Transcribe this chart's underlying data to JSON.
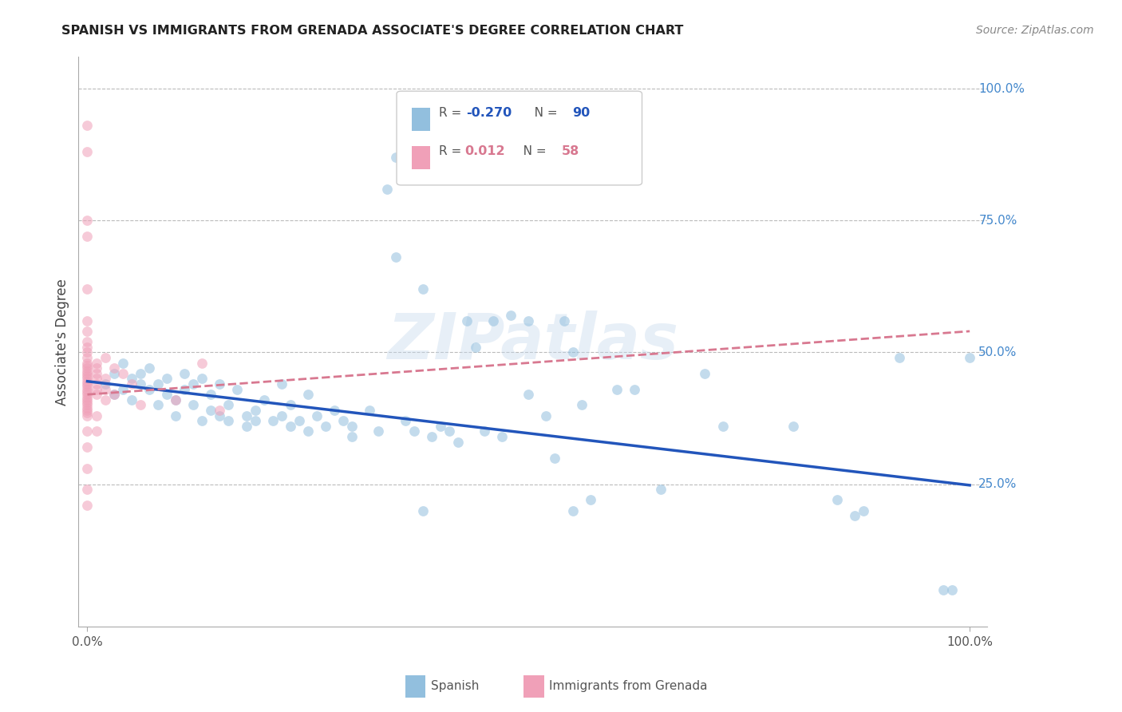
{
  "title": "SPANISH VS IMMIGRANTS FROM GRENADA ASSOCIATE'S DEGREE CORRELATION CHART",
  "source": "Source: ZipAtlas.com",
  "ylabel": "Associate's Degree",
  "watermark": "ZIPatlas",
  "xlim": [
    0.0,
    1.0
  ],
  "ylim": [
    0.0,
    1.0
  ],
  "x_ticks": [
    0.0,
    1.0
  ],
  "x_tick_labels": [
    "0.0%",
    "100.0%"
  ],
  "y_tick_positions": [
    0.25,
    0.5,
    0.75,
    1.0
  ],
  "y_tick_labels": [
    "25.0%",
    "50.0%",
    "75.0%",
    "100.0%"
  ],
  "blue_scatter": [
    [
      0.02,
      0.44
    ],
    [
      0.03,
      0.46
    ],
    [
      0.03,
      0.42
    ],
    [
      0.04,
      0.48
    ],
    [
      0.04,
      0.43
    ],
    [
      0.05,
      0.45
    ],
    [
      0.05,
      0.41
    ],
    [
      0.06,
      0.44
    ],
    [
      0.06,
      0.46
    ],
    [
      0.07,
      0.47
    ],
    [
      0.07,
      0.43
    ],
    [
      0.08,
      0.44
    ],
    [
      0.08,
      0.4
    ],
    [
      0.09,
      0.42
    ],
    [
      0.09,
      0.45
    ],
    [
      0.1,
      0.41
    ],
    [
      0.1,
      0.38
    ],
    [
      0.11,
      0.46
    ],
    [
      0.11,
      0.43
    ],
    [
      0.12,
      0.44
    ],
    [
      0.12,
      0.4
    ],
    [
      0.13,
      0.45
    ],
    [
      0.13,
      0.37
    ],
    [
      0.14,
      0.39
    ],
    [
      0.14,
      0.42
    ],
    [
      0.15,
      0.44
    ],
    [
      0.15,
      0.38
    ],
    [
      0.16,
      0.4
    ],
    [
      0.16,
      0.37
    ],
    [
      0.17,
      0.43
    ],
    [
      0.18,
      0.38
    ],
    [
      0.18,
      0.36
    ],
    [
      0.19,
      0.39
    ],
    [
      0.19,
      0.37
    ],
    [
      0.2,
      0.41
    ],
    [
      0.21,
      0.37
    ],
    [
      0.22,
      0.44
    ],
    [
      0.22,
      0.38
    ],
    [
      0.23,
      0.36
    ],
    [
      0.23,
      0.4
    ],
    [
      0.24,
      0.37
    ],
    [
      0.25,
      0.42
    ],
    [
      0.25,
      0.35
    ],
    [
      0.26,
      0.38
    ],
    [
      0.27,
      0.36
    ],
    [
      0.28,
      0.39
    ],
    [
      0.29,
      0.37
    ],
    [
      0.3,
      0.34
    ],
    [
      0.3,
      0.36
    ],
    [
      0.32,
      0.39
    ],
    [
      0.33,
      0.35
    ],
    [
      0.34,
      0.81
    ],
    [
      0.35,
      0.87
    ],
    [
      0.35,
      0.68
    ],
    [
      0.36,
      0.37
    ],
    [
      0.37,
      0.35
    ],
    [
      0.38,
      0.62
    ],
    [
      0.38,
      0.2
    ],
    [
      0.39,
      0.34
    ],
    [
      0.4,
      0.36
    ],
    [
      0.41,
      0.35
    ],
    [
      0.42,
      0.33
    ],
    [
      0.43,
      0.56
    ],
    [
      0.44,
      0.51
    ],
    [
      0.45,
      0.35
    ],
    [
      0.46,
      0.56
    ],
    [
      0.47,
      0.34
    ],
    [
      0.48,
      0.57
    ],
    [
      0.5,
      0.56
    ],
    [
      0.5,
      0.42
    ],
    [
      0.52,
      0.38
    ],
    [
      0.53,
      0.3
    ],
    [
      0.54,
      0.56
    ],
    [
      0.55,
      0.5
    ],
    [
      0.55,
      0.2
    ],
    [
      0.56,
      0.4
    ],
    [
      0.57,
      0.22
    ],
    [
      0.6,
      0.43
    ],
    [
      0.62,
      0.43
    ],
    [
      0.65,
      0.24
    ],
    [
      0.7,
      0.46
    ],
    [
      0.72,
      0.36
    ],
    [
      0.8,
      0.36
    ],
    [
      0.85,
      0.22
    ],
    [
      0.87,
      0.19
    ],
    [
      0.88,
      0.2
    ],
    [
      0.92,
      0.49
    ],
    [
      0.97,
      0.05
    ],
    [
      0.98,
      0.05
    ],
    [
      1.0,
      0.49
    ]
  ],
  "pink_scatter": [
    [
      0.0,
      0.93
    ],
    [
      0.0,
      0.88
    ],
    [
      0.0,
      0.75
    ],
    [
      0.0,
      0.72
    ],
    [
      0.0,
      0.62
    ],
    [
      0.0,
      0.56
    ],
    [
      0.0,
      0.54
    ],
    [
      0.0,
      0.52
    ],
    [
      0.0,
      0.51
    ],
    [
      0.0,
      0.5
    ],
    [
      0.0,
      0.49
    ],
    [
      0.0,
      0.48
    ],
    [
      0.0,
      0.475
    ],
    [
      0.0,
      0.47
    ],
    [
      0.0,
      0.465
    ],
    [
      0.0,
      0.46
    ],
    [
      0.0,
      0.455
    ],
    [
      0.0,
      0.45
    ],
    [
      0.0,
      0.445
    ],
    [
      0.0,
      0.44
    ],
    [
      0.0,
      0.435
    ],
    [
      0.0,
      0.43
    ],
    [
      0.0,
      0.425
    ],
    [
      0.0,
      0.42
    ],
    [
      0.0,
      0.415
    ],
    [
      0.0,
      0.41
    ],
    [
      0.0,
      0.405
    ],
    [
      0.0,
      0.4
    ],
    [
      0.0,
      0.395
    ],
    [
      0.0,
      0.39
    ],
    [
      0.0,
      0.385
    ],
    [
      0.0,
      0.38
    ],
    [
      0.0,
      0.35
    ],
    [
      0.0,
      0.32
    ],
    [
      0.0,
      0.28
    ],
    [
      0.0,
      0.24
    ],
    [
      0.0,
      0.21
    ],
    [
      0.01,
      0.48
    ],
    [
      0.01,
      0.47
    ],
    [
      0.01,
      0.46
    ],
    [
      0.01,
      0.45
    ],
    [
      0.01,
      0.44
    ],
    [
      0.01,
      0.43
    ],
    [
      0.01,
      0.42
    ],
    [
      0.01,
      0.38
    ],
    [
      0.01,
      0.35
    ],
    [
      0.02,
      0.49
    ],
    [
      0.02,
      0.45
    ],
    [
      0.02,
      0.43
    ],
    [
      0.02,
      0.41
    ],
    [
      0.03,
      0.47
    ],
    [
      0.03,
      0.42
    ],
    [
      0.04,
      0.46
    ],
    [
      0.05,
      0.44
    ],
    [
      0.06,
      0.4
    ],
    [
      0.1,
      0.41
    ],
    [
      0.13,
      0.48
    ],
    [
      0.15,
      0.39
    ]
  ],
  "blue_line_x": [
    0.0,
    1.0
  ],
  "blue_line_y": [
    0.445,
    0.248
  ],
  "pink_line_x": [
    0.0,
    1.0
  ],
  "pink_line_y": [
    0.42,
    0.54
  ],
  "scatter_alpha": 0.55,
  "scatter_size": 85,
  "blue_color": "#92bfde",
  "pink_color": "#f0a0b8",
  "blue_line_color": "#2255bb",
  "pink_line_color": "#d87890",
  "grid_color": "#bbbbbb",
  "title_color": "#222222",
  "axis_label_color": "#444444",
  "right_tick_color": "#4488cc",
  "bottom_tick_color": "#555555",
  "source_color": "#888888",
  "background_color": "#ffffff",
  "legend_R_color_blue": "#2255bb",
  "legend_R_color_pink": "#d87890",
  "legend_N_color_blue": "#2255bb",
  "legend_N_color_pink": "#d87890"
}
